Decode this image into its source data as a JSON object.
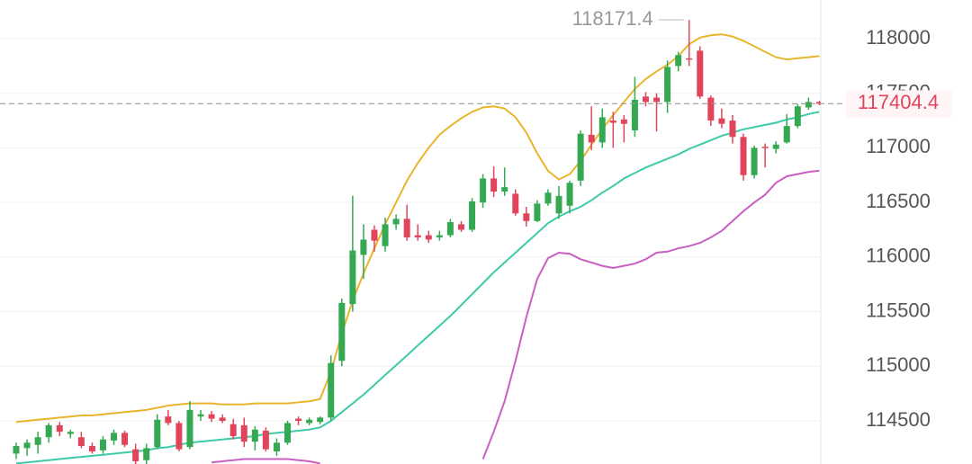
{
  "chart_data": {
    "type": "candlestick",
    "up_color": "#35a853",
    "down_color": "#e0455c",
    "open": [
      114200,
      114250,
      114280,
      114350,
      114460,
      114380,
      114350,
      114270,
      114230,
      114320,
      114390,
      114240,
      114140,
      114260,
      114540,
      114480,
      114260,
      114540,
      114560,
      114530,
      114470,
      114460,
      114310,
      114410,
      114220,
      114300,
      114520,
      114480,
      114490,
      114530,
      115050,
      115570,
      116020,
      116250,
      116100,
      116300,
      116350,
      116200,
      116200,
      116180,
      116200,
      116300,
      116250,
      116500,
      116720,
      116600,
      116580,
      116400,
      116330,
      116490,
      116400,
      116470,
      116700,
      117120,
      117050,
      117250,
      117260,
      117160,
      117470,
      117460,
      117420,
      117750,
      117820,
      117890,
      117460,
      117270,
      117250,
      117100,
      116750,
      117010,
      116990,
      117050,
      117200,
      117370,
      117420
    ],
    "high": [
      114300,
      114330,
      114400,
      114480,
      114490,
      114420,
      114400,
      114300,
      114360,
      114420,
      114410,
      114290,
      114290,
      114560,
      114600,
      114500,
      114680,
      114600,
      114590,
      114560,
      114520,
      114530,
      114450,
      114440,
      114340,
      114500,
      114540,
      114530,
      114540,
      115100,
      115620,
      116560,
      116300,
      116290,
      116360,
      116390,
      116480,
      116300,
      116240,
      116240,
      116350,
      116330,
      116540,
      116760,
      116830,
      116820,
      116620,
      116460,
      116520,
      116620,
      116650,
      116700,
      117160,
      117380,
      117360,
      117330,
      117300,
      117650,
      117510,
      117500,
      117800,
      117880,
      118171.4,
      117930,
      117480,
      117360,
      117300,
      117130,
      117020,
      117040,
      117060,
      117310,
      117400,
      117460,
      117430
    ],
    "low": [
      114150,
      114180,
      114200,
      114300,
      114360,
      114340,
      114250,
      114200,
      114200,
      114280,
      114260,
      114100,
      114080,
      114240,
      114460,
      114220,
      114240,
      114500,
      114490,
      114480,
      114330,
      114260,
      114230,
      114220,
      114180,
      114280,
      114460,
      114460,
      114470,
      114500,
      115000,
      115500,
      115800,
      116050,
      116050,
      116250,
      116150,
      116150,
      116130,
      116150,
      116180,
      116230,
      116230,
      116450,
      116550,
      116560,
      116380,
      116280,
      116320,
      116470,
      116350,
      116400,
      116650,
      116980,
      117000,
      117000,
      117050,
      117100,
      117380,
      117150,
      117320,
      117700,
      117750,
      117450,
      117200,
      117180,
      117040,
      116700,
      116720,
      116820,
      116950,
      117040,
      117180,
      117350,
      117390
    ],
    "close": [
      114270,
      114300,
      114350,
      114460,
      114400,
      114400,
      114270,
      114220,
      114330,
      114390,
      114280,
      114130,
      114250,
      114510,
      114480,
      114240,
      114600,
      114560,
      114520,
      114500,
      114360,
      114310,
      114420,
      114240,
      114300,
      114480,
      114500,
      114510,
      114530,
      115030,
      115580,
      116060,
      116160,
      116150,
      116300,
      116350,
      116180,
      116180,
      116160,
      116200,
      116320,
      116250,
      116510,
      116720,
      116600,
      116640,
      116400,
      116330,
      116490,
      116590,
      116560,
      116680,
      117130,
      117050,
      117280,
      117230,
      117220,
      117440,
      117420,
      117420,
      117740,
      117850,
      117810,
      117470,
      117250,
      117220,
      117100,
      116750,
      117000,
      117000,
      117030,
      117200,
      117380,
      117420,
      117404.4
    ],
    "bands": [
      {
        "color": "#e8b52c",
        "values": [
          114490,
          114500,
          114510,
          114520,
          114530,
          114540,
          114550,
          114550,
          114560,
          114570,
          114580,
          114590,
          114600,
          114620,
          114640,
          114650,
          114660,
          114660,
          114660,
          114650,
          114650,
          114650,
          114660,
          114660,
          114660,
          114660,
          114670,
          114680,
          114700,
          114950,
          115300,
          115600,
          115850,
          116080,
          116300,
          116500,
          116700,
          116860,
          117000,
          117120,
          117200,
          117270,
          117330,
          117370,
          117380,
          117360,
          117280,
          117140,
          116950,
          116790,
          116710,
          116760,
          116880,
          117030,
          117170,
          117300,
          117420,
          117540,
          117630,
          117700,
          117760,
          117840,
          117950,
          118010,
          118030,
          118040,
          118020,
          117980,
          117930,
          117880,
          117830,
          117810,
          117820,
          117830,
          117840
        ]
      },
      {
        "color": "#3ecaa8",
        "values": [
          114110,
          114120,
          114130,
          114140,
          114150,
          114160,
          114170,
          114180,
          114190,
          114200,
          114210,
          114220,
          114230,
          114250,
          114260,
          114280,
          114300,
          114310,
          114320,
          114330,
          114340,
          114350,
          114360,
          114380,
          114390,
          114400,
          114410,
          114420,
          114440,
          114500,
          114580,
          114660,
          114740,
          114830,
          114920,
          115010,
          115100,
          115190,
          115280,
          115370,
          115460,
          115560,
          115660,
          115760,
          115860,
          115950,
          116040,
          116130,
          116220,
          116310,
          116370,
          116420,
          116460,
          116520,
          116590,
          116650,
          116720,
          116770,
          116820,
          116860,
          116900,
          116940,
          116990,
          117030,
          117070,
          117110,
          117140,
          117170,
          117190,
          117210,
          117230,
          117260,
          117280,
          117310,
          117330
        ]
      },
      {
        "color": "#c95fc2",
        "values": [
          null,
          null,
          null,
          null,
          null,
          null,
          null,
          null,
          null,
          null,
          null,
          null,
          null,
          null,
          null,
          null,
          null,
          null,
          114120,
          114130,
          114140,
          114150,
          114150,
          114150,
          114150,
          114150,
          114140,
          114130,
          114110,
          null,
          null,
          null,
          null,
          null,
          null,
          null,
          null,
          null,
          null,
          null,
          null,
          null,
          null,
          114150,
          114400,
          114680,
          115050,
          115450,
          115800,
          115990,
          116040,
          116030,
          115980,
          115950,
          115920,
          115900,
          115920,
          115940,
          115980,
          116040,
          116050,
          116080,
          116100,
          116130,
          116180,
          116240,
          116330,
          116420,
          116500,
          116570,
          116680,
          116740,
          116760,
          116780,
          116790
        ]
      }
    ],
    "ylim": [
      114105,
      118354
    ],
    "yticks": [
      114500,
      115000,
      115500,
      116000,
      116500,
      117000,
      117500,
      118000
    ],
    "grid": true
  }
}
